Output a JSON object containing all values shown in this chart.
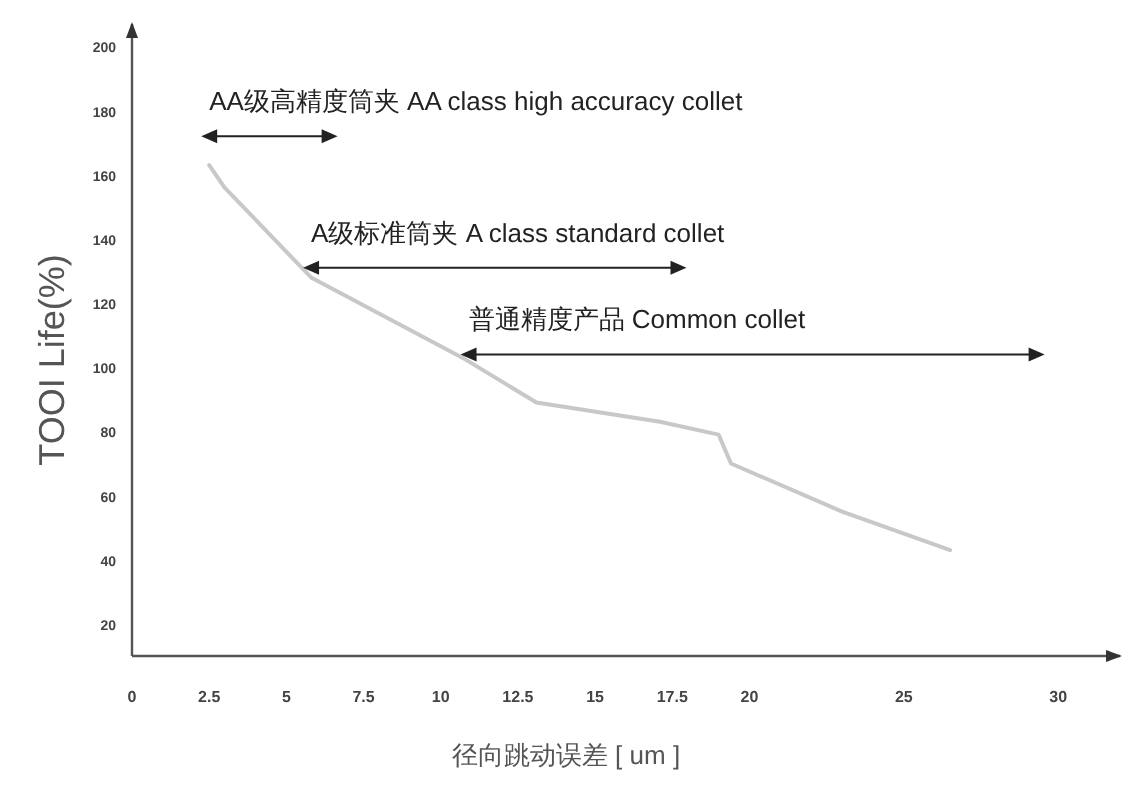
{
  "chart_data": {
    "type": "line",
    "xlabel": "径向跳动误差 [ um ]",
    "ylabel": "TOOI Life(%)",
    "x": [
      2.5,
      3.0,
      5.8,
      10.7,
      13.1,
      17.1,
      19.0,
      19.4,
      23,
      26.5
    ],
    "series": [
      {
        "color": "#c8c8c8",
        "values": [
          163,
          156,
          128,
          103,
          89,
          83,
          79,
          70,
          55,
          43
        ]
      },
      {
        "name": "AA级高精度筒夹 AA class high accuracy collet",
        "color": "#222222",
        "x": [
          2.5,
          6.4
        ],
        "values": [
          172,
          172
        ],
        "marker": "triangle"
      },
      {
        "name": "A级标准筒夹 A class standard collet",
        "color": "#222222",
        "x": [
          5.8,
          17.7
        ],
        "values": [
          131,
          131
        ],
        "marker": "triangle"
      },
      {
        "name": "普通精度产品 Common collet",
        "color": "#222222",
        "x": [
          10.9,
          29.3
        ],
        "values": [
          104,
          104
        ],
        "marker": "triangle"
      }
    ],
    "xlim": [
      0,
      32
    ],
    "xticks": [
      0,
      2.5,
      5,
      7.5,
      10,
      12.5,
      15,
      17.5,
      20,
      25,
      30
    ],
    "ylim": [
      10,
      207
    ],
    "yticks": [
      20,
      40,
      60,
      80,
      100,
      120,
      140,
      160,
      180,
      200
    ],
    "grid": false,
    "marker": "none",
    "line_style": "solid"
  }
}
